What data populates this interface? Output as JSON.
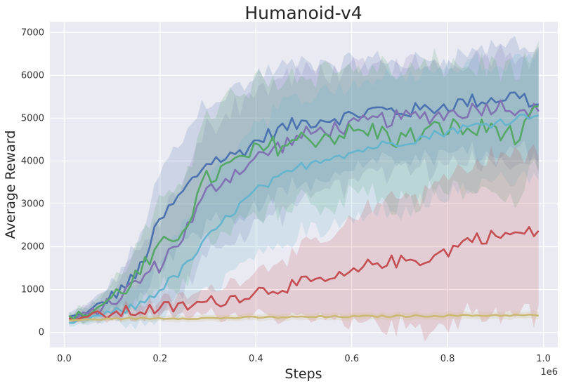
{
  "chart_data": {
    "type": "line",
    "title": "Humanoid-v4",
    "xlabel": "Steps",
    "ylabel": "Average Reward",
    "x_multiplier_label": "1e6",
    "xlim": [
      -0.03,
      1.03
    ],
    "ylim": [
      -350,
      7250
    ],
    "x_ticks": [
      0.0,
      0.2,
      0.4,
      0.6,
      0.8,
      1.0
    ],
    "x_tick_labels": [
      "0.0",
      "0.2",
      "0.4",
      "0.6",
      "0.8",
      "1.0"
    ],
    "y_ticks": [
      0,
      1000,
      2000,
      3000,
      4000,
      5000,
      6000,
      7000
    ],
    "y_tick_labels": [
      "0",
      "1000",
      "2000",
      "3000",
      "4000",
      "5000",
      "6000",
      "7000"
    ],
    "grid": true,
    "legend": "none",
    "x_start": 0.01,
    "x_end": 0.99,
    "series": [
      {
        "color": "#4c72b0",
        "anchors": [
          [
            0.01,
            350
          ],
          [
            0.05,
            450
          ],
          [
            0.1,
            850
          ],
          [
            0.15,
            1300
          ],
          [
            0.2,
            2600
          ],
          [
            0.25,
            3300
          ],
          [
            0.3,
            4000
          ],
          [
            0.35,
            4100
          ],
          [
            0.4,
            4450
          ],
          [
            0.45,
            4750
          ],
          [
            0.5,
            4900
          ],
          [
            0.55,
            5000
          ],
          [
            0.6,
            5050
          ],
          [
            0.65,
            5200
          ],
          [
            0.7,
            5150
          ],
          [
            0.75,
            5200
          ],
          [
            0.8,
            5300
          ],
          [
            0.85,
            5400
          ],
          [
            0.9,
            5450
          ],
          [
            0.95,
            5550
          ],
          [
            0.99,
            5250
          ]
        ],
        "band": [
          [
            0.01,
            90
          ],
          [
            0.1,
            300
          ],
          [
            0.2,
            1100
          ],
          [
            0.3,
            1500
          ],
          [
            0.4,
            1500
          ],
          [
            0.6,
            1200
          ],
          [
            0.8,
            1100
          ],
          [
            0.99,
            1300
          ]
        ],
        "noise": 180
      },
      {
        "color": "#8172b2",
        "anchors": [
          [
            0.01,
            300
          ],
          [
            0.05,
            420
          ],
          [
            0.1,
            700
          ],
          [
            0.15,
            1150
          ],
          [
            0.2,
            1600
          ],
          [
            0.25,
            2300
          ],
          [
            0.3,
            3300
          ],
          [
            0.35,
            3700
          ],
          [
            0.4,
            4050
          ],
          [
            0.45,
            4350
          ],
          [
            0.5,
            4600
          ],
          [
            0.55,
            4750
          ],
          [
            0.6,
            4800
          ],
          [
            0.65,
            4950
          ],
          [
            0.7,
            5000
          ],
          [
            0.75,
            5050
          ],
          [
            0.8,
            5100
          ],
          [
            0.85,
            5200
          ],
          [
            0.9,
            5300
          ],
          [
            0.95,
            5250
          ],
          [
            0.99,
            5150
          ]
        ],
        "band": [
          [
            0.01,
            90
          ],
          [
            0.1,
            300
          ],
          [
            0.2,
            1000
          ],
          [
            0.3,
            1500
          ],
          [
            0.4,
            1600
          ],
          [
            0.6,
            1300
          ],
          [
            0.8,
            1200
          ],
          [
            0.99,
            1300
          ]
        ],
        "noise": 200
      },
      {
        "color": "#55a868",
        "anchors": [
          [
            0.01,
            350
          ],
          [
            0.05,
            450
          ],
          [
            0.1,
            800
          ],
          [
            0.15,
            1300
          ],
          [
            0.2,
            1900
          ],
          [
            0.25,
            2500
          ],
          [
            0.3,
            3600
          ],
          [
            0.35,
            3900
          ],
          [
            0.4,
            4200
          ],
          [
            0.45,
            4400
          ],
          [
            0.5,
            4500
          ],
          [
            0.55,
            4600
          ],
          [
            0.6,
            4650
          ],
          [
            0.65,
            4700
          ],
          [
            0.7,
            4500
          ],
          [
            0.75,
            4650
          ],
          [
            0.8,
            4800
          ],
          [
            0.85,
            4700
          ],
          [
            0.9,
            4800
          ],
          [
            0.95,
            4500
          ],
          [
            0.99,
            5200
          ]
        ],
        "band": [
          [
            0.01,
            100
          ],
          [
            0.1,
            300
          ],
          [
            0.2,
            1000
          ],
          [
            0.3,
            1500
          ],
          [
            0.4,
            1600
          ],
          [
            0.6,
            1500
          ],
          [
            0.8,
            1500
          ],
          [
            0.99,
            1400
          ]
        ],
        "noise": 260
      },
      {
        "color": "#64b5cd",
        "anchors": [
          [
            0.01,
            200
          ],
          [
            0.05,
            330
          ],
          [
            0.1,
            450
          ],
          [
            0.15,
            600
          ],
          [
            0.2,
            1000
          ],
          [
            0.25,
            1500
          ],
          [
            0.3,
            2200
          ],
          [
            0.35,
            2800
          ],
          [
            0.4,
            3300
          ],
          [
            0.45,
            3600
          ],
          [
            0.5,
            3900
          ],
          [
            0.55,
            4100
          ],
          [
            0.6,
            4200
          ],
          [
            0.65,
            4350
          ],
          [
            0.7,
            4450
          ],
          [
            0.75,
            4550
          ],
          [
            0.8,
            4700
          ],
          [
            0.85,
            4800
          ],
          [
            0.9,
            4900
          ],
          [
            0.95,
            5000
          ],
          [
            0.99,
            5150
          ]
        ],
        "band": [
          [
            0.01,
            80
          ],
          [
            0.1,
            200
          ],
          [
            0.2,
            700
          ],
          [
            0.3,
            1300
          ],
          [
            0.4,
            1600
          ],
          [
            0.6,
            1600
          ],
          [
            0.8,
            1500
          ],
          [
            0.99,
            1400
          ]
        ],
        "noise": 110
      },
      {
        "color": "#c44e52",
        "anchors": [
          [
            0.01,
            300
          ],
          [
            0.05,
            380
          ],
          [
            0.1,
            430
          ],
          [
            0.15,
            500
          ],
          [
            0.2,
            560
          ],
          [
            0.25,
            600
          ],
          [
            0.3,
            700
          ],
          [
            0.35,
            800
          ],
          [
            0.4,
            950
          ],
          [
            0.45,
            1050
          ],
          [
            0.5,
            1150
          ],
          [
            0.55,
            1200
          ],
          [
            0.6,
            1350
          ],
          [
            0.65,
            1650
          ],
          [
            0.7,
            1650
          ],
          [
            0.75,
            1700
          ],
          [
            0.8,
            1900
          ],
          [
            0.85,
            2200
          ],
          [
            0.9,
            2250
          ],
          [
            0.95,
            2300
          ],
          [
            0.99,
            2350
          ]
        ],
        "band": [
          [
            0.01,
            50
          ],
          [
            0.1,
            120
          ],
          [
            0.2,
            180
          ],
          [
            0.3,
            280
          ],
          [
            0.4,
            500
          ],
          [
            0.5,
            800
          ],
          [
            0.6,
            1200
          ],
          [
            0.7,
            1500
          ],
          [
            0.8,
            1700
          ],
          [
            0.99,
            1900
          ]
        ],
        "noise": 160
      },
      {
        "color": "#ccb974",
        "anchors": [
          [
            0.01,
            280
          ],
          [
            0.1,
            320
          ],
          [
            0.2,
            330
          ],
          [
            0.3,
            330
          ],
          [
            0.4,
            350
          ],
          [
            0.5,
            360
          ],
          [
            0.6,
            370
          ],
          [
            0.7,
            380
          ],
          [
            0.8,
            390
          ],
          [
            0.9,
            400
          ],
          [
            0.99,
            400
          ]
        ],
        "band": [
          [
            0.01,
            50
          ],
          [
            0.2,
            70
          ],
          [
            0.5,
            80
          ],
          [
            0.99,
            90
          ]
        ],
        "noise": 22
      }
    ]
  }
}
